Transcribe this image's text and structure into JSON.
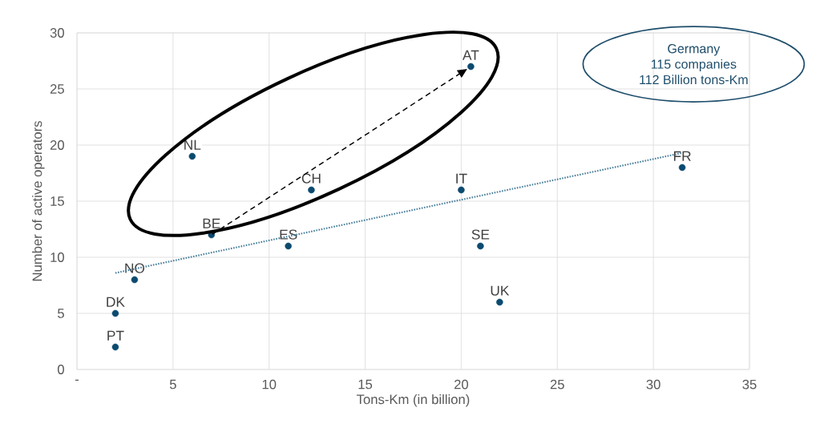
{
  "chart_data": {
    "type": "scatter",
    "xlabel": "Tons-Km (in billion)",
    "ylabel": "Number of active operators",
    "xlim": [
      0,
      35
    ],
    "ylim": [
      0,
      30
    ],
    "xticks": [
      {
        "value": 0,
        "label": "-"
      },
      5,
      10,
      15,
      20,
      25,
      30,
      35
    ],
    "yticks": [
      0,
      5,
      10,
      15,
      20,
      25,
      30
    ],
    "grid": true,
    "series": [
      {
        "color": "#0b4a6f",
        "marker": "circle",
        "x": [
          2,
          2,
          3,
          6,
          7,
          11,
          12.2,
          20,
          20.5,
          21,
          22,
          31.5
        ],
        "values": [
          2,
          5,
          8,
          19,
          12,
          11,
          16,
          16,
          27,
          11,
          6,
          18
        ]
      },
      {
        "type": "line",
        "color": "#4a7f9a",
        "line_style": "dotted",
        "marker": "none",
        "x": [
          2,
          31.5
        ],
        "values": [
          8.6,
          19.3
        ]
      }
    ],
    "annotations": [
      {
        "text": "PT",
        "x": 2,
        "y": 2
      },
      {
        "text": "DK",
        "x": 2,
        "y": 5
      },
      {
        "text": "NO",
        "x": 3,
        "y": 8
      },
      {
        "text": "NL",
        "x": 6,
        "y": 19
      },
      {
        "text": "BE",
        "x": 7,
        "y": 12
      },
      {
        "text": "ES",
        "x": 11,
        "y": 11
      },
      {
        "text": "CH",
        "x": 12.2,
        "y": 16
      },
      {
        "text": "IT",
        "x": 20,
        "y": 16
      },
      {
        "text": "AT",
        "x": 20.5,
        "y": 27
      },
      {
        "text": "SE",
        "x": 21,
        "y": 11
      },
      {
        "text": "UK",
        "x": 22,
        "y": 6
      },
      {
        "text": "FR",
        "x": 31.5,
        "y": 18
      },
      "Germany",
      "115 companies",
      "112 Billion tons-Km"
    ]
  }
}
